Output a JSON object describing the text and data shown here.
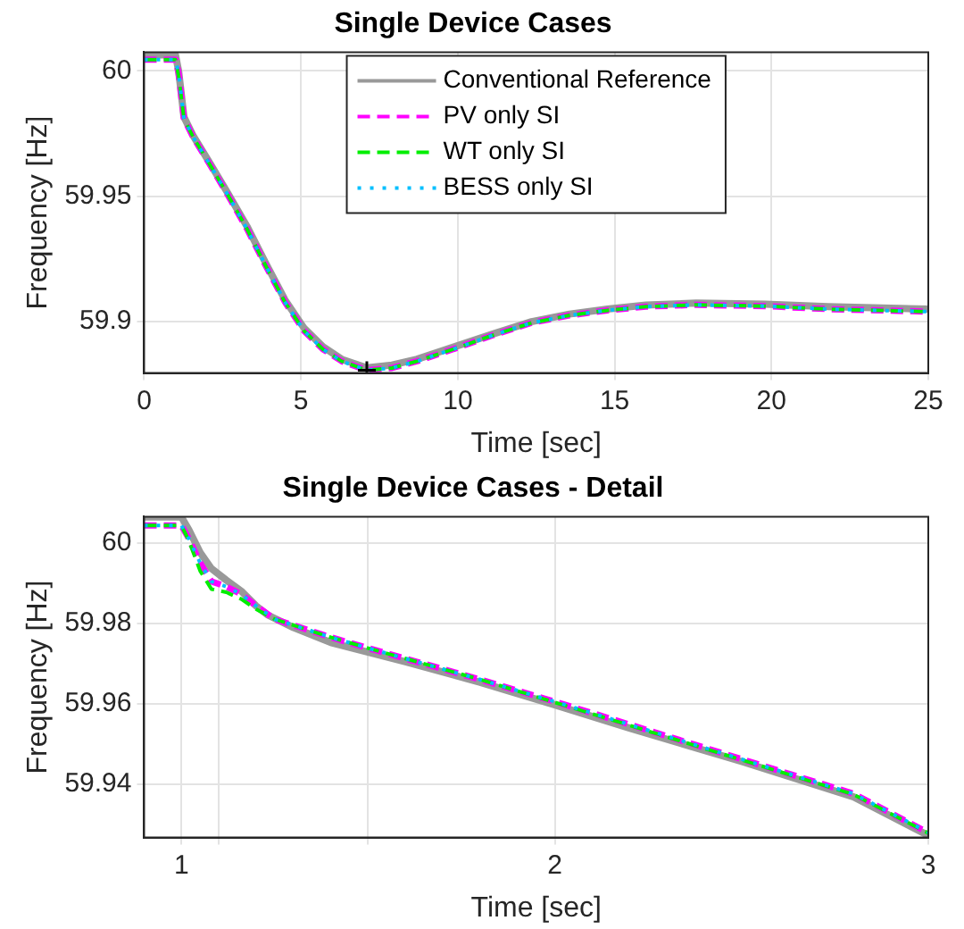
{
  "chart_data": [
    {
      "type": "line",
      "title": "Single Device Cases",
      "xlabel": "Time [sec]",
      "ylabel": "Frequency [Hz]",
      "xlim": [
        0,
        25
      ],
      "xticks": [
        0,
        5,
        10,
        15,
        20,
        25
      ],
      "ylim": [
        59.8795,
        60.0075
      ],
      "yticks": [
        59.9,
        59.95,
        60
      ],
      "grid": true,
      "legend": "top",
      "series": [
        {
          "name": "Conventional Reference",
          "color": "#999999",
          "line_style": "solid",
          "x": [
            0,
            1,
            1.1,
            1.27,
            1.57,
            2.07,
            2.68,
            3.28,
            3.89,
            4.49,
            5.1,
            5.7,
            6.3,
            7.1,
            7.9,
            8.7,
            9.9,
            11.1,
            12.35,
            13.56,
            14.77,
            16,
            17.6,
            19.8,
            21.8,
            25
          ],
          "values": [
            60.0064,
            60.0064,
            60.0,
            59.9816,
            59.974,
            59.9638,
            59.951,
            59.938,
            59.923,
            59.9087,
            59.8974,
            59.89,
            59.885,
            59.8816,
            59.8827,
            59.885,
            59.89,
            59.895,
            59.9,
            59.903,
            59.905,
            59.9066,
            59.9074,
            59.907,
            59.906,
            59.905
          ]
        },
        {
          "name": "PV only SI",
          "color": "#ff00ff",
          "line_style": "dashed",
          "x": [
            0,
            1,
            1.1,
            1.27,
            1.57,
            2.07,
            2.68,
            3.28,
            3.89,
            4.49,
            5.1,
            5.7,
            6.3,
            7.1,
            7.9,
            8.7,
            9.9,
            11.1,
            12.35,
            13.56,
            14.77,
            16,
            17.6,
            19.8,
            21.8,
            25
          ],
          "values": [
            60.0045,
            60.0045,
            59.999,
            59.981,
            59.9735,
            59.9632,
            59.9503,
            59.937,
            59.922,
            59.9078,
            59.8963,
            59.889,
            59.8842,
            59.8806,
            59.8815,
            59.8842,
            59.8892,
            59.8945,
            59.8995,
            59.9025,
            59.9045,
            59.906,
            59.9067,
            59.9062,
            59.905,
            59.904
          ]
        },
        {
          "name": "WT only SI",
          "color": "#00ee00",
          "line_style": "dashed",
          "x": [
            0,
            1,
            1.1,
            1.27,
            1.57,
            2.07,
            2.68,
            3.28,
            3.89,
            4.49,
            5.1,
            5.7,
            6.3,
            7.1,
            7.9,
            8.7,
            9.9,
            11.1,
            12.35,
            13.56,
            14.77,
            16,
            17.6,
            19.8,
            21.8,
            25
          ],
          "values": [
            60.0045,
            60.0045,
            59.998,
            59.981,
            59.9735,
            59.9632,
            59.9503,
            59.937,
            59.922,
            59.9078,
            59.8963,
            59.889,
            59.8842,
            59.8806,
            59.8815,
            59.8842,
            59.8892,
            59.8945,
            59.8995,
            59.9025,
            59.9045,
            59.906,
            59.9067,
            59.9062,
            59.905,
            59.904
          ]
        },
        {
          "name": "BESS only SI",
          "color": "#00bfff",
          "line_style": "dotted",
          "x": [
            0,
            1,
            1.1,
            1.27,
            1.57,
            2.07,
            2.68,
            3.28,
            3.89,
            4.49,
            5.1,
            5.7,
            6.3,
            7.1,
            7.9,
            8.7,
            9.9,
            11.1,
            12.35,
            13.56,
            14.77,
            16,
            17.6,
            19.8,
            21.8,
            25
          ],
          "values": [
            60.0045,
            60.0045,
            59.999,
            59.981,
            59.9735,
            59.9632,
            59.9503,
            59.937,
            59.922,
            59.9078,
            59.8963,
            59.889,
            59.8842,
            59.8806,
            59.8815,
            59.8842,
            59.8892,
            59.8945,
            59.8995,
            59.9025,
            59.9045,
            59.906,
            59.9067,
            59.9062,
            59.905,
            59.904
          ]
        },
        {
          "type": "scatter",
          "marker": "cross",
          "color": "#000000",
          "x": [
            7.1
          ],
          "values": [
            59.8806
          ]
        }
      ]
    },
    {
      "type": "line",
      "title": "Single Device Cases - Detail",
      "xlabel": "Time [sec]",
      "ylabel": "Frequency [Hz]",
      "xlim": [
        0.9,
        3
      ],
      "xticks": [
        1,
        {
          "value": 1.1,
          "label": null
        },
        {
          "value": 1.5,
          "label": null
        },
        2,
        3
      ],
      "ylim": [
        59.9267,
        60.0065
      ],
      "yticks": [
        59.94,
        59.96,
        59.98,
        60
      ],
      "grid": true,
      "series": [
        {
          "color": "#999999",
          "line_style": "solid",
          "x": [
            0.9,
            1.0,
            1.02,
            1.05,
            1.08,
            1.12,
            1.16,
            1.2,
            1.23,
            1.3,
            1.4,
            1.5,
            1.6,
            1.8,
            2.0,
            2.2,
            2.5,
            2.8,
            3.0
          ],
          "values": [
            60.0064,
            60.0064,
            60.0032,
            59.9976,
            59.9936,
            59.9907,
            59.988,
            59.9843,
            59.9821,
            59.9789,
            59.9752,
            59.9728,
            59.9704,
            59.9653,
            59.9597,
            59.9539,
            59.9456,
            59.9368,
            59.9272
          ]
        },
        {
          "color": "#ff00ff",
          "line_style": "dashed",
          "x": [
            0.9,
            1.0,
            1.02,
            1.05,
            1.08,
            1.12,
            1.16,
            1.2,
            1.25,
            1.3,
            1.4,
            1.5,
            1.6,
            1.8,
            2.0,
            2.2,
            2.5,
            2.8,
            3.0
          ],
          "values": [
            60.0043,
            60.0043,
            60.001,
            59.995,
            59.9904,
            59.9891,
            59.9872,
            59.9843,
            59.981,
            59.9795,
            59.9765,
            59.9738,
            59.9712,
            59.966,
            59.9605,
            59.9548,
            59.9462,
            59.9376,
            59.9279
          ]
        },
        {
          "color": "#00ee00",
          "line_style": "dashed",
          "x": [
            0.9,
            1.0,
            1.02,
            1.05,
            1.08,
            1.12,
            1.16,
            1.2,
            1.25,
            1.3,
            1.4,
            1.5,
            1.6,
            1.8,
            2.0,
            2.2,
            2.5,
            2.8,
            3.0
          ],
          "values": [
            60.0043,
            60.0043,
            60.0005,
            59.993,
            59.9885,
            59.9877,
            59.986,
            59.9835,
            59.981,
            59.9795,
            59.9765,
            59.9738,
            59.9712,
            59.966,
            59.9603,
            59.9546,
            59.946,
            59.9374,
            59.9278
          ]
        },
        {
          "color": "#00bfff",
          "line_style": "dotted",
          "x": [
            0.9,
            1.0,
            1.02,
            1.05,
            1.08,
            1.12,
            1.16,
            1.2,
            1.25,
            1.3,
            1.4,
            1.5,
            1.6,
            1.8,
            2.0,
            2.2,
            2.5,
            2.8,
            3.0
          ],
          "values": [
            60.0043,
            60.0043,
            60.001,
            59.995,
            59.9904,
            59.9891,
            59.9872,
            59.9843,
            59.981,
            59.9795,
            59.9765,
            59.9738,
            59.9712,
            59.966,
            59.9605,
            59.9548,
            59.9462,
            59.9376,
            59.928
          ]
        }
      ]
    }
  ]
}
